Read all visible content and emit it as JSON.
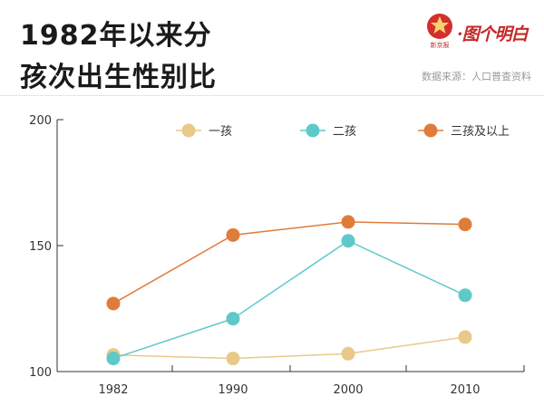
{
  "header": {
    "title_line1": "1982年以来分",
    "title_line2": "孩次出生性别比",
    "logo_text": "·图个明白",
    "logo_seal_text": "新京报",
    "source": "数据来源：人口普查资料"
  },
  "colors": {
    "first_child": "#e8c98a",
    "second_child": "#5ec9c9",
    "third_plus": "#e07c3a",
    "axis": "#333333",
    "tick_label": "#333333"
  },
  "chart_data": {
    "type": "line",
    "title": "",
    "xlabel": "",
    "ylabel": "",
    "categories": [
      "1982",
      "1990",
      "2000",
      "2010"
    ],
    "ylim": [
      100,
      200
    ],
    "yticks": [
      100,
      150,
      200
    ],
    "grid": false,
    "legend_position": "top",
    "series": [
      {
        "name": "一孩",
        "color": "#e8c98a",
        "values": [
          106.6,
          105.2,
          107.1,
          113.7
        ]
      },
      {
        "name": "二孩",
        "color": "#5ec9c9",
        "values": [
          105.2,
          121.0,
          151.9,
          130.3
        ]
      },
      {
        "name": "三孩及以上",
        "color": "#e07c3a",
        "values": [
          127.0,
          154.2,
          159.4,
          158.4
        ]
      }
    ]
  }
}
